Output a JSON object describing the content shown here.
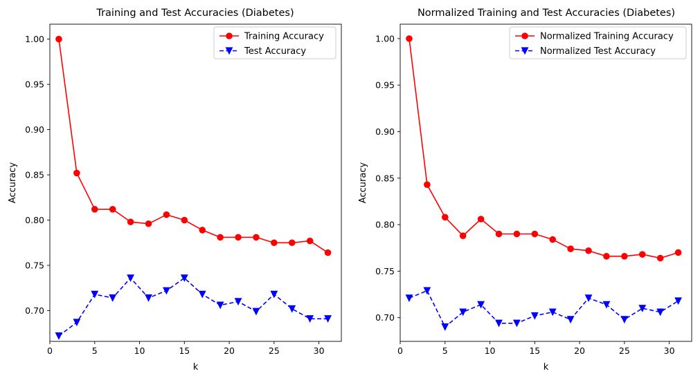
{
  "chart_data": [
    {
      "type": "line",
      "title": "Training and Test Accuracies (Diabetes)",
      "xlabel": "k",
      "ylabel": "Accuracy",
      "xlim": [
        0,
        32.5
      ],
      "ylim": [
        0.666,
        1.0165
      ],
      "xticks": [
        0,
        5,
        10,
        15,
        20,
        25,
        30
      ],
      "yticks": [
        0.7,
        0.75,
        0.8,
        0.85,
        0.9,
        0.95,
        1.0
      ],
      "ytick_labels": [
        "0.70",
        "0.75",
        "0.80",
        "0.85",
        "0.90",
        "0.95",
        "1.00"
      ],
      "legend": "top-right",
      "x": [
        1,
        3,
        5,
        7,
        9,
        11,
        13,
        15,
        17,
        19,
        21,
        23,
        25,
        27,
        29,
        31
      ],
      "series": [
        {
          "name": "Training Accuracy",
          "color": "#ff0000",
          "marker": "circle",
          "dash": "solid",
          "values": [
            1.0,
            0.852,
            0.812,
            0.812,
            0.798,
            0.796,
            0.806,
            0.8,
            0.789,
            0.781,
            0.781,
            0.781,
            0.775,
            0.775,
            0.777,
            0.764
          ]
        },
        {
          "name": "Test Accuracy",
          "color": "#0000ff",
          "marker": "triangle-down",
          "dash": "dashed",
          "values": [
            0.672,
            0.687,
            0.718,
            0.714,
            0.736,
            0.714,
            0.722,
            0.736,
            0.718,
            0.706,
            0.71,
            0.699,
            0.718,
            0.702,
            0.691,
            0.691
          ]
        }
      ]
    },
    {
      "type": "line",
      "title": "Normalized Training and Test Accuracies (Diabetes)",
      "xlabel": "k",
      "ylabel": "Accuracy",
      "xlim": [
        0,
        32.5
      ],
      "ylim": [
        0.6745,
        1.0155
      ],
      "xticks": [
        0,
        5,
        10,
        15,
        20,
        25,
        30
      ],
      "yticks": [
        0.7,
        0.75,
        0.8,
        0.85,
        0.9,
        0.95,
        1.0
      ],
      "ytick_labels": [
        "0.70",
        "0.75",
        "0.80",
        "0.85",
        "0.90",
        "0.95",
        "1.00"
      ],
      "legend": "top-right",
      "x": [
        1,
        3,
        5,
        7,
        9,
        11,
        13,
        15,
        17,
        19,
        21,
        23,
        25,
        27,
        29,
        31
      ],
      "series": [
        {
          "name": "Normalized Training Accuracy",
          "color": "#ff0000",
          "marker": "circle",
          "dash": "solid",
          "values": [
            1.0,
            0.843,
            0.808,
            0.788,
            0.806,
            0.79,
            0.79,
            0.79,
            0.784,
            0.774,
            0.772,
            0.766,
            0.766,
            0.768,
            0.764,
            0.77
          ]
        },
        {
          "name": "Normalized Test Accuracy",
          "color": "#0000ff",
          "marker": "triangle-down",
          "dash": "dashed",
          "values": [
            0.721,
            0.729,
            0.69,
            0.706,
            0.714,
            0.694,
            0.694,
            0.702,
            0.706,
            0.698,
            0.721,
            0.714,
            0.698,
            0.71,
            0.706,
            0.718
          ]
        }
      ]
    }
  ]
}
